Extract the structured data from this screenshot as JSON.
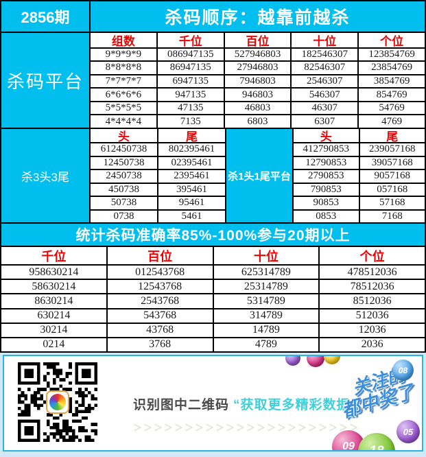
{
  "page": {
    "issue": "2856期",
    "title": "杀码顺序：越靠前越杀"
  },
  "kill_platform": {
    "label": "杀码平台",
    "headers": [
      "组数",
      "千位",
      "百位",
      "十位",
      "个位"
    ],
    "rows": [
      [
        "9*9*9*9",
        "086947135",
        "527946803",
        "182546307",
        "123854769"
      ],
      [
        "8*8*8*8",
        "86947135",
        "27946803",
        "82546307",
        "23854769"
      ],
      [
        "7*7*7*7",
        "6947135",
        "7946803",
        "2546307",
        "3854769"
      ],
      [
        "6*6*6*6",
        "947135",
        "946803",
        "546307",
        "854769"
      ],
      [
        "5*5*5*5",
        "47135",
        "46803",
        "46307",
        "54769"
      ],
      [
        "4*4*4*4",
        "7135",
        "6803",
        "6307",
        "4769"
      ]
    ]
  },
  "kill_3head_3tail": {
    "label": "杀3头3尾",
    "headers": [
      "头",
      "尾"
    ],
    "rows": [
      [
        "612450738",
        "802395461"
      ],
      [
        "12450738",
        "02395461"
      ],
      [
        "2450738",
        "2395461"
      ],
      [
        "450738",
        "395461"
      ],
      [
        "50738",
        "95461"
      ],
      [
        "0738",
        "5461"
      ]
    ]
  },
  "kill_1head_1tail": {
    "label": "杀1头1尾平台",
    "headers": [
      "头",
      "尾"
    ],
    "rows": [
      [
        "412790853",
        "239057168"
      ],
      [
        "12790853",
        "39057168"
      ],
      [
        "2790853",
        "9057168"
      ],
      [
        "790853",
        "057168"
      ],
      [
        "90853",
        "57168"
      ],
      [
        "0853",
        "7168"
      ]
    ]
  },
  "banner": {
    "text": "统计杀码准确率85%-100%参与20期以上"
  },
  "stats": {
    "headers": [
      "千位",
      "百位",
      "十位",
      "个位"
    ],
    "rows": [
      [
        "958630214",
        "012543768",
        "625314789",
        "478512036"
      ],
      [
        "58630214",
        "12543768",
        "25314789",
        "78512036"
      ],
      [
        "8630214",
        "2543768",
        "5314789",
        "8512036"
      ],
      [
        "630214",
        "543768",
        "314789",
        "512036"
      ],
      [
        "30214",
        "43768",
        "14789",
        "12036"
      ],
      [
        "0214",
        "3768",
        "4789",
        "2036"
      ]
    ]
  },
  "footer": {
    "scan_text": "识别图中二维码",
    "highlight_text": "“获取更多精彩数据”",
    "chevrons": "＞＞＞＞＞＞＞＞＞＞＞＞＞＞＞＞＞＞＞＞＞＞",
    "decor_text_line1": "关注的",
    "decor_text_line2": "都中奖了",
    "balls": [
      {
        "label": "",
        "color": "#9b59d0"
      },
      {
        "label": "",
        "color": "#d63384"
      },
      {
        "label": "",
        "color": "#f2c41d"
      },
      {
        "label": "08",
        "color": "#4da4e8"
      },
      {
        "label": "05",
        "color": "#9b59d0"
      },
      {
        "label": "09",
        "color": "#d63384"
      },
      {
        "label": "18",
        "color": "#7ac32f"
      }
    ]
  },
  "colors": {
    "accent_cyan": "#00bfef",
    "header_red": "#ee0000",
    "highlight_teal": "#3fd0da",
    "footer_background": "#cfe9f6"
  }
}
